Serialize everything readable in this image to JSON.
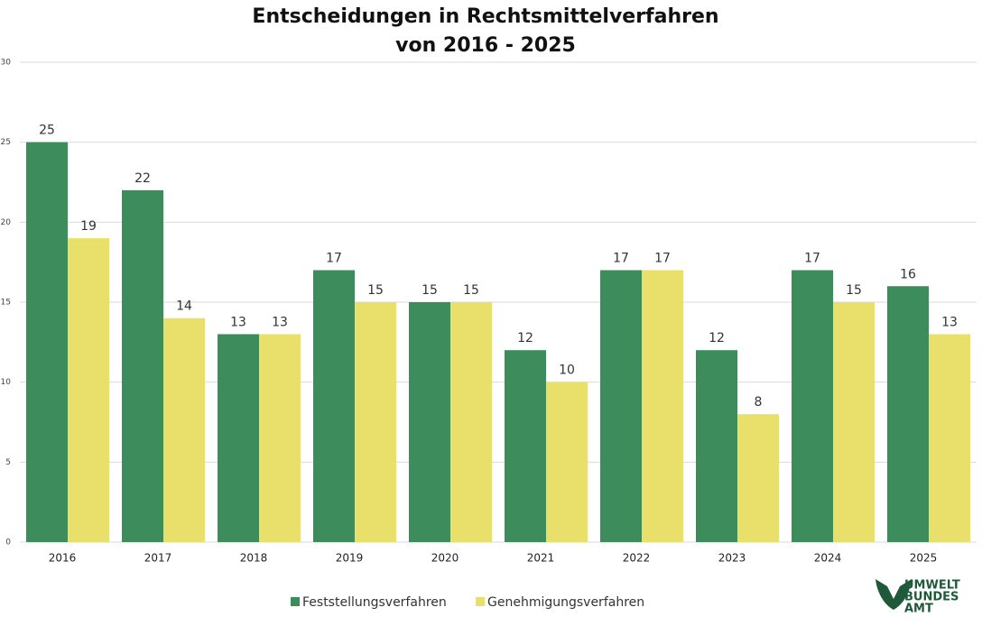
{
  "chart_data": {
    "type": "bar",
    "title": "Entscheidungen in Rechtsmittelverfahren",
    "subtitle": "von 2016 - 2025",
    "categories": [
      "2016",
      "2017",
      "2018",
      "2019",
      "2020",
      "2021",
      "2022",
      "2023",
      "2024",
      "2025"
    ],
    "series": [
      {
        "name": "Feststellungsverfahren",
        "color": "#3d8c5c",
        "values": [
          25,
          22,
          13,
          17,
          15,
          12,
          17,
          12,
          17,
          16
        ]
      },
      {
        "name": "Genehmigungsverfahren",
        "color": "#e8e06a",
        "values": [
          19,
          14,
          13,
          15,
          15,
          10,
          17,
          8,
          15,
          13
        ]
      }
    ],
    "ylim": [
      0,
      30
    ],
    "yticks": [
      0,
      5,
      10,
      15,
      20,
      25,
      30
    ],
    "grid": true,
    "legend": "bottom"
  },
  "logo": [
    "UMWELT",
    "BUNDES",
    "AMT"
  ]
}
